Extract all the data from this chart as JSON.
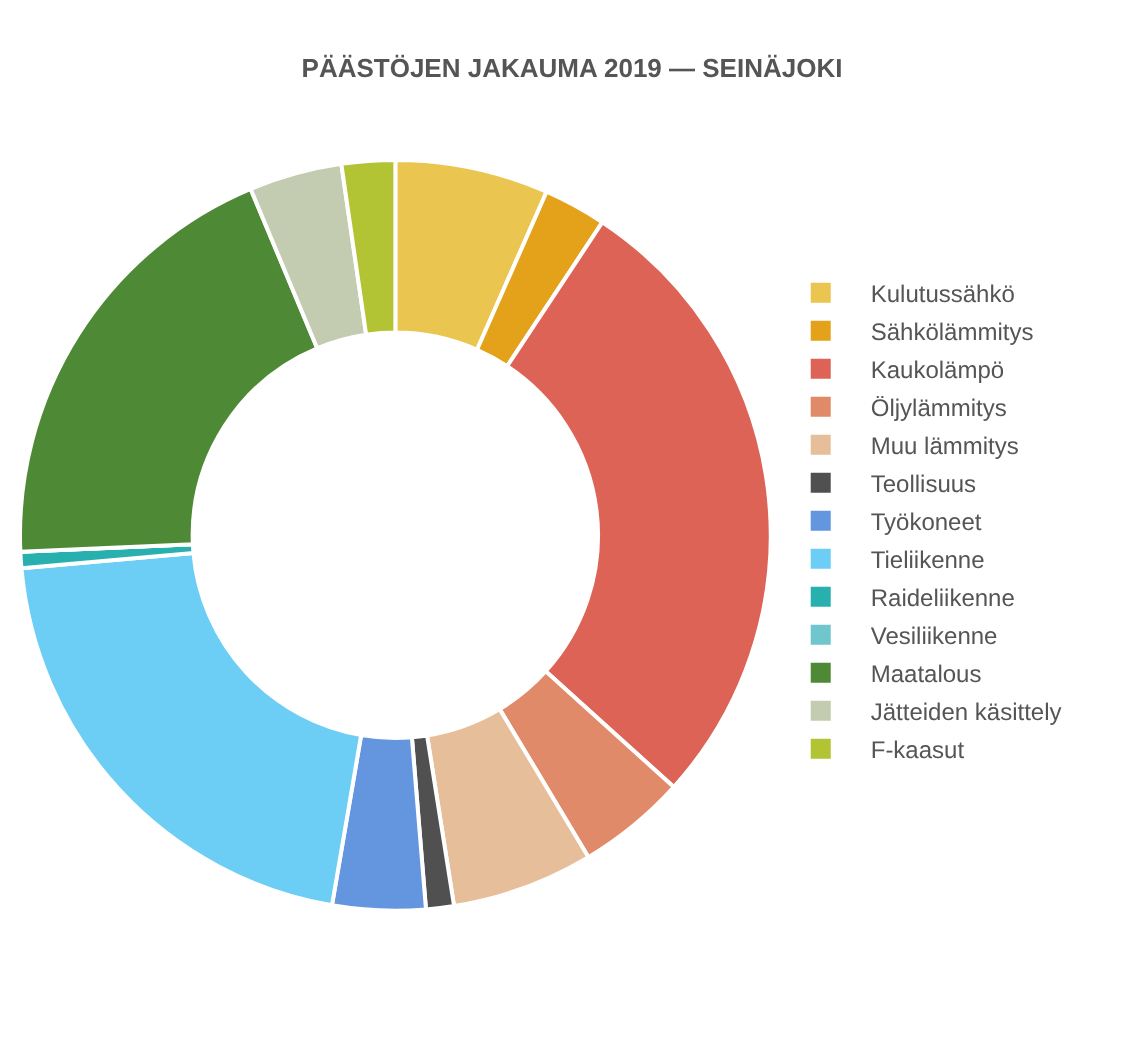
{
  "chart_data": {
    "type": "donut",
    "title": "PÄÄSTÖJEN JAKAUMA 2019 — SEINÄJOKI",
    "categories": [
      "Kulutussähkö",
      "Sähkölämmitys",
      "Kaukolämpö",
      "Öljylämmitys",
      "Muu lämmitys",
      "Teollisuus",
      "Työkoneet",
      "Tieliikenne",
      "Raideliikenne",
      "Vesiliikenne",
      "Maatalous",
      "Jätteiden käsittely",
      "F-kaasut"
    ],
    "values": [
      6.6,
      2.7,
      27.4,
      4.7,
      6.1,
      1.2,
      4.0,
      20.9,
      0.7,
      0,
      19.4,
      4.0,
      2.3
    ],
    "colors": [
      "#eac54f",
      "#e3a21a",
      "#dc6356",
      "#e08a6a",
      "#e6bf9a",
      "#505050",
      "#6496e0",
      "#6ccdf5",
      "#27b0ad",
      "#6fc6cc",
      "#4e8a35",
      "#c3cbb0",
      "#b2c333"
    ],
    "legend": "right"
  }
}
